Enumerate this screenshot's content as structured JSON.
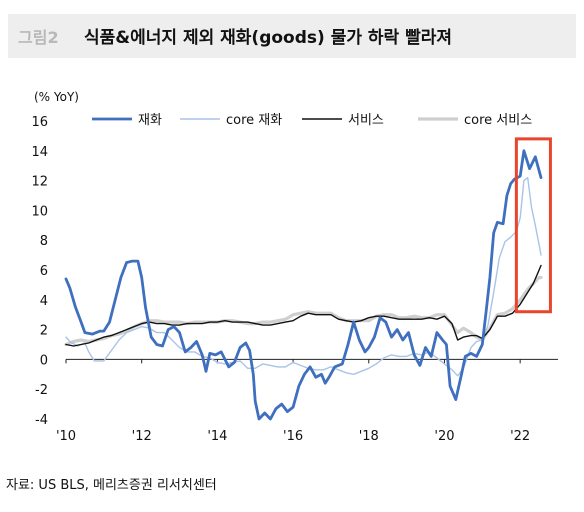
{
  "header": {
    "fig_label": "그림2",
    "title": "식품&에너지 제외 재화(goods) 물가 하락 빨라져"
  },
  "footer": {
    "source": "자료: US BLS, 메리츠증권 리서치센터"
  },
  "chart_data": {
    "type": "line",
    "title": "식품&에너지 제외 재화(goods) 물가 하락 빨라져",
    "unit_label": "(% YoY)",
    "ylim": [
      -4,
      16
    ],
    "yticks": [
      -4,
      -2,
      0,
      2,
      4,
      6,
      8,
      10,
      12,
      14,
      16
    ],
    "xlim": [
      2010,
      2023
    ],
    "xticks": [
      {
        "value": 2010,
        "label": "'10"
      },
      {
        "value": 2012,
        "label": "'12"
      },
      {
        "value": 2014,
        "label": "'14"
      },
      {
        "value": 2016,
        "label": "'16"
      },
      {
        "value": 2018,
        "label": "'18"
      },
      {
        "value": 2020,
        "label": "'20"
      },
      {
        "value": 2022,
        "label": "'22"
      }
    ],
    "legend_position": "top",
    "highlight_box": {
      "x": [
        2021.9,
        2022.8
      ],
      "y": [
        3.2,
        14.8
      ],
      "color": "#e8452c"
    },
    "colors": {
      "goods": "#3f6fbf",
      "core_goods": "#a9c4e8",
      "services": "#111111",
      "core_services": "#cfcfcf"
    },
    "series": [
      {
        "name": "재화",
        "key": "goods",
        "points": [
          [
            2010.0,
            5.4
          ],
          [
            2010.1,
            4.8
          ],
          [
            2010.25,
            3.5
          ],
          [
            2010.4,
            2.5
          ],
          [
            2010.5,
            1.8
          ],
          [
            2010.7,
            1.7
          ],
          [
            2010.9,
            1.9
          ],
          [
            2011.0,
            1.9
          ],
          [
            2011.15,
            2.5
          ],
          [
            2011.3,
            4.0
          ],
          [
            2011.45,
            5.5
          ],
          [
            2011.6,
            6.5
          ],
          [
            2011.75,
            6.6
          ],
          [
            2011.9,
            6.6
          ],
          [
            2012.0,
            5.5
          ],
          [
            2012.1,
            3.5
          ],
          [
            2012.25,
            1.5
          ],
          [
            2012.4,
            1.0
          ],
          [
            2012.55,
            0.9
          ],
          [
            2012.7,
            2.0
          ],
          [
            2012.85,
            2.2
          ],
          [
            2013.0,
            1.8
          ],
          [
            2013.15,
            0.5
          ],
          [
            2013.3,
            0.8
          ],
          [
            2013.45,
            1.2
          ],
          [
            2013.6,
            0.3
          ],
          [
            2013.7,
            -0.8
          ],
          [
            2013.8,
            0.4
          ],
          [
            2013.95,
            0.3
          ],
          [
            2014.1,
            0.5
          ],
          [
            2014.3,
            -0.5
          ],
          [
            2014.45,
            -0.2
          ],
          [
            2014.6,
            0.8
          ],
          [
            2014.75,
            1.1
          ],
          [
            2014.85,
            0.6
          ],
          [
            2014.95,
            -1.0
          ],
          [
            2015.0,
            -2.8
          ],
          [
            2015.1,
            -4.0
          ],
          [
            2015.25,
            -3.6
          ],
          [
            2015.4,
            -4.0
          ],
          [
            2015.55,
            -3.3
          ],
          [
            2015.7,
            -3.0
          ],
          [
            2015.85,
            -3.5
          ],
          [
            2016.0,
            -3.2
          ],
          [
            2016.15,
            -1.8
          ],
          [
            2016.3,
            -1.0
          ],
          [
            2016.45,
            -0.5
          ],
          [
            2016.6,
            -1.2
          ],
          [
            2016.75,
            -1.0
          ],
          [
            2016.85,
            -1.6
          ],
          [
            2016.95,
            -1.2
          ],
          [
            2017.1,
            -0.5
          ],
          [
            2017.3,
            -0.3
          ],
          [
            2017.45,
            1.0
          ],
          [
            2017.6,
            2.5
          ],
          [
            2017.75,
            1.3
          ],
          [
            2017.9,
            0.5
          ],
          [
            2018.0,
            0.8
          ],
          [
            2018.15,
            1.5
          ],
          [
            2018.3,
            2.8
          ],
          [
            2018.45,
            2.5
          ],
          [
            2018.6,
            1.5
          ],
          [
            2018.75,
            2.0
          ],
          [
            2018.9,
            1.3
          ],
          [
            2019.05,
            1.8
          ],
          [
            2019.2,
            0.3
          ],
          [
            2019.35,
            -0.4
          ],
          [
            2019.5,
            0.8
          ],
          [
            2019.65,
            0.2
          ],
          [
            2019.8,
            1.8
          ],
          [
            2019.95,
            1.3
          ],
          [
            2020.05,
            1.0
          ],
          [
            2020.15,
            -1.8
          ],
          [
            2020.3,
            -2.7
          ],
          [
            2020.45,
            -1.0
          ],
          [
            2020.55,
            0.2
          ],
          [
            2020.7,
            0.4
          ],
          [
            2020.85,
            0.2
          ],
          [
            2021.0,
            1.0
          ],
          [
            2021.1,
            3.2
          ],
          [
            2021.2,
            5.5
          ],
          [
            2021.3,
            8.5
          ],
          [
            2021.4,
            9.2
          ],
          [
            2021.55,
            9.1
          ],
          [
            2021.65,
            11.0
          ],
          [
            2021.75,
            11.8
          ],
          [
            2021.85,
            12.1
          ],
          [
            2022.0,
            12.3
          ],
          [
            2022.1,
            14.0
          ],
          [
            2022.25,
            12.8
          ],
          [
            2022.4,
            13.6
          ],
          [
            2022.55,
            12.2
          ]
        ]
      },
      {
        "name": "core 재화",
        "key": "core_goods",
        "points": [
          [
            2010.0,
            1.5
          ],
          [
            2010.1,
            1.2
          ],
          [
            2010.3,
            0.9
          ],
          [
            2010.5,
            1.1
          ],
          [
            2010.6,
            0.5
          ],
          [
            2010.75,
            -0.1
          ],
          [
            2010.9,
            -0.1
          ],
          [
            2011.0,
            -0.1
          ],
          [
            2011.2,
            0.6
          ],
          [
            2011.4,
            1.3
          ],
          [
            2011.6,
            1.8
          ],
          [
            2011.8,
            2.0
          ],
          [
            2012.0,
            2.2
          ],
          [
            2012.2,
            2.1
          ],
          [
            2012.4,
            1.8
          ],
          [
            2012.6,
            1.8
          ],
          [
            2012.8,
            1.3
          ],
          [
            2013.0,
            0.8
          ],
          [
            2013.2,
            0.5
          ],
          [
            2013.4,
            0.5
          ],
          [
            2013.6,
            0.2
          ],
          [
            2013.8,
            0.1
          ],
          [
            2014.0,
            -0.2
          ],
          [
            2014.2,
            -0.3
          ],
          [
            2014.4,
            -0.2
          ],
          [
            2014.6,
            -0.1
          ],
          [
            2014.8,
            -0.6
          ],
          [
            2015.0,
            -0.6
          ],
          [
            2015.2,
            -0.3
          ],
          [
            2015.4,
            -0.4
          ],
          [
            2015.6,
            -0.5
          ],
          [
            2015.8,
            -0.5
          ],
          [
            2016.0,
            -0.2
          ],
          [
            2016.2,
            -0.4
          ],
          [
            2016.4,
            -0.6
          ],
          [
            2016.6,
            -0.7
          ],
          [
            2016.8,
            -0.7
          ],
          [
            2017.0,
            -0.5
          ],
          [
            2017.2,
            -0.7
          ],
          [
            2017.4,
            -0.9
          ],
          [
            2017.6,
            -1.0
          ],
          [
            2017.8,
            -0.8
          ],
          [
            2018.0,
            -0.6
          ],
          [
            2018.2,
            -0.3
          ],
          [
            2018.4,
            0.1
          ],
          [
            2018.6,
            0.3
          ],
          [
            2018.8,
            0.2
          ],
          [
            2019.0,
            0.2
          ],
          [
            2019.2,
            0.4
          ],
          [
            2019.4,
            0.3
          ],
          [
            2019.6,
            0.5
          ],
          [
            2019.8,
            0.1
          ],
          [
            2020.0,
            -0.3
          ],
          [
            2020.2,
            -0.7
          ],
          [
            2020.35,
            -1.1
          ],
          [
            2020.5,
            -0.6
          ],
          [
            2020.7,
            0.8
          ],
          [
            2020.85,
            1.2
          ],
          [
            2021.0,
            1.3
          ],
          [
            2021.15,
            2.3
          ],
          [
            2021.3,
            4.5
          ],
          [
            2021.45,
            6.8
          ],
          [
            2021.6,
            7.9
          ],
          [
            2021.75,
            8.2
          ],
          [
            2021.9,
            8.6
          ],
          [
            2022.0,
            9.5
          ],
          [
            2022.1,
            12.0
          ],
          [
            2022.2,
            12.2
          ],
          [
            2022.3,
            10.2
          ],
          [
            2022.4,
            9.0
          ],
          [
            2022.5,
            7.7
          ],
          [
            2022.55,
            7.0
          ]
        ]
      },
      {
        "name": "서비스",
        "key": "services",
        "points": [
          [
            2010.0,
            1.0
          ],
          [
            2010.2,
            0.9
          ],
          [
            2010.4,
            1.0
          ],
          [
            2010.6,
            1.1
          ],
          [
            2010.8,
            1.3
          ],
          [
            2011.0,
            1.5
          ],
          [
            2011.2,
            1.6
          ],
          [
            2011.4,
            1.8
          ],
          [
            2011.6,
            2.0
          ],
          [
            2011.8,
            2.2
          ],
          [
            2012.0,
            2.4
          ],
          [
            2012.2,
            2.5
          ],
          [
            2012.4,
            2.4
          ],
          [
            2012.6,
            2.4
          ],
          [
            2012.8,
            2.3
          ],
          [
            2013.0,
            2.3
          ],
          [
            2013.2,
            2.4
          ],
          [
            2013.4,
            2.4
          ],
          [
            2013.6,
            2.4
          ],
          [
            2013.8,
            2.5
          ],
          [
            2014.0,
            2.5
          ],
          [
            2014.2,
            2.6
          ],
          [
            2014.4,
            2.5
          ],
          [
            2014.6,
            2.5
          ],
          [
            2014.8,
            2.5
          ],
          [
            2015.0,
            2.4
          ],
          [
            2015.2,
            2.3
          ],
          [
            2015.4,
            2.3
          ],
          [
            2015.6,
            2.4
          ],
          [
            2015.8,
            2.5
          ],
          [
            2016.0,
            2.6
          ],
          [
            2016.2,
            2.9
          ],
          [
            2016.4,
            3.1
          ],
          [
            2016.6,
            3.0
          ],
          [
            2016.8,
            3.0
          ],
          [
            2017.0,
            3.0
          ],
          [
            2017.2,
            2.7
          ],
          [
            2017.4,
            2.6
          ],
          [
            2017.6,
            2.5
          ],
          [
            2017.8,
            2.6
          ],
          [
            2018.0,
            2.8
          ],
          [
            2018.2,
            2.9
          ],
          [
            2018.4,
            2.9
          ],
          [
            2018.6,
            2.8
          ],
          [
            2018.8,
            2.7
          ],
          [
            2019.0,
            2.7
          ],
          [
            2019.2,
            2.7
          ],
          [
            2019.4,
            2.7
          ],
          [
            2019.6,
            2.8
          ],
          [
            2019.8,
            2.7
          ],
          [
            2020.0,
            2.9
          ],
          [
            2020.2,
            2.4
          ],
          [
            2020.35,
            1.3
          ],
          [
            2020.5,
            1.5
          ],
          [
            2020.7,
            1.6
          ],
          [
            2020.85,
            1.6
          ],
          [
            2021.0,
            1.4
          ],
          [
            2021.2,
            2.0
          ],
          [
            2021.4,
            2.9
          ],
          [
            2021.6,
            2.9
          ],
          [
            2021.8,
            3.1
          ],
          [
            2022.0,
            3.7
          ],
          [
            2022.2,
            4.5
          ],
          [
            2022.35,
            5.1
          ],
          [
            2022.5,
            6.0
          ],
          [
            2022.55,
            6.3
          ]
        ]
      },
      {
        "name": "core 서비스",
        "key": "core_services",
        "points": [
          [
            2010.0,
            1.0
          ],
          [
            2010.2,
            1.2
          ],
          [
            2010.4,
            1.3
          ],
          [
            2010.6,
            1.2
          ],
          [
            2010.8,
            1.3
          ],
          [
            2011.0,
            1.4
          ],
          [
            2011.2,
            1.6
          ],
          [
            2011.4,
            1.7
          ],
          [
            2011.6,
            1.9
          ],
          [
            2011.8,
            2.2
          ],
          [
            2012.0,
            2.4
          ],
          [
            2012.2,
            2.6
          ],
          [
            2012.4,
            2.6
          ],
          [
            2012.6,
            2.5
          ],
          [
            2012.8,
            2.5
          ],
          [
            2013.0,
            2.5
          ],
          [
            2013.2,
            2.4
          ],
          [
            2013.4,
            2.5
          ],
          [
            2013.6,
            2.5
          ],
          [
            2013.8,
            2.5
          ],
          [
            2014.0,
            2.5
          ],
          [
            2014.2,
            2.6
          ],
          [
            2014.4,
            2.6
          ],
          [
            2014.6,
            2.5
          ],
          [
            2014.8,
            2.4
          ],
          [
            2015.0,
            2.4
          ],
          [
            2015.2,
            2.5
          ],
          [
            2015.4,
            2.5
          ],
          [
            2015.6,
            2.6
          ],
          [
            2015.8,
            2.7
          ],
          [
            2016.0,
            3.0
          ],
          [
            2016.2,
            3.1
          ],
          [
            2016.4,
            3.2
          ],
          [
            2016.6,
            3.1
          ],
          [
            2016.8,
            3.1
          ],
          [
            2017.0,
            3.1
          ],
          [
            2017.2,
            2.8
          ],
          [
            2017.4,
            2.6
          ],
          [
            2017.6,
            2.6
          ],
          [
            2017.8,
            2.6
          ],
          [
            2018.0,
            2.6
          ],
          [
            2018.2,
            2.9
          ],
          [
            2018.4,
            3.0
          ],
          [
            2018.6,
            3.0
          ],
          [
            2018.8,
            2.8
          ],
          [
            2019.0,
            2.8
          ],
          [
            2019.2,
            2.9
          ],
          [
            2019.4,
            2.8
          ],
          [
            2019.6,
            2.8
          ],
          [
            2019.8,
            3.0
          ],
          [
            2020.0,
            3.0
          ],
          [
            2020.2,
            2.3
          ],
          [
            2020.35,
            1.8
          ],
          [
            2020.5,
            2.1
          ],
          [
            2020.7,
            1.8
          ],
          [
            2020.85,
            1.5
          ],
          [
            2021.0,
            1.3
          ],
          [
            2021.2,
            2.1
          ],
          [
            2021.4,
            3.0
          ],
          [
            2021.6,
            3.1
          ],
          [
            2021.8,
            3.4
          ],
          [
            2022.0,
            4.0
          ],
          [
            2022.2,
            4.7
          ],
          [
            2022.35,
            5.1
          ],
          [
            2022.5,
            5.5
          ],
          [
            2022.55,
            5.5
          ]
        ]
      }
    ]
  }
}
